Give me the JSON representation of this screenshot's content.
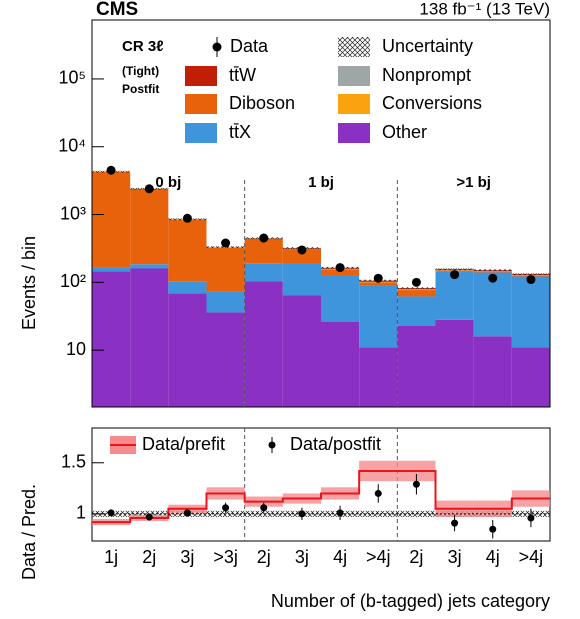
{
  "chart_data": {
    "type": "stacked_hist_ratio",
    "experiment": "CMS",
    "lumi": "138 fb⁻¹ (13 TeV)",
    "region": "CR 3ℓ",
    "selection": "(Tight)",
    "fit": "Postfit",
    "ylabel": "Events / bin",
    "ratio_ylabel": "Data / Pred.",
    "xlabel": "Number of (b-tagged) jets category",
    "log_y": true,
    "categories": [
      "1j",
      "2j",
      "3j",
      ">3j",
      "2j",
      "3j",
      "4j",
      ">4j",
      "2j",
      "3j",
      "4j",
      ">4j"
    ],
    "groups": [
      {
        "label": "0 bj",
        "bins": [
          0,
          4
        ]
      },
      {
        "label": "1 bj",
        "bins": [
          4,
          8
        ]
      },
      {
        "label": ">1 bj",
        "bins": [
          8,
          12
        ]
      }
    ],
    "ylim": [
      1.45,
      740000
    ],
    "yticks": [
      {
        "value": 10,
        "label": "10"
      },
      {
        "value": 100,
        "label": "10²"
      },
      {
        "value": 1000,
        "label": "10³"
      },
      {
        "value": 10000,
        "label": "10⁴"
      },
      {
        "value": 100000,
        "label": "10⁵"
      }
    ],
    "series": [
      {
        "name": "Other",
        "color": "#8a30c2",
        "values": [
          145,
          160,
          69,
          36,
          103,
          64,
          26,
          11,
          23,
          28,
          16,
          11
        ]
      },
      {
        "name": "tt̄X",
        "color": "#3e95dc",
        "values": [
          20,
          25,
          35,
          37,
          85,
          126,
          100,
          79,
          39,
          117,
          124,
          111
        ]
      },
      {
        "name": "Diboson",
        "color": "#e8620c",
        "values": [
          4100,
          2200,
          740,
          250,
          250,
          120,
          30,
          10,
          15,
          5,
          5,
          4
        ]
      },
      {
        "name": "Conversions",
        "color": "#fba30e",
        "values": [
          15,
          10,
          5,
          4,
          3,
          2,
          2,
          1,
          1,
          1,
          1,
          1
        ]
      },
      {
        "name": "Nonprompt",
        "color": "#9ea7a6",
        "values": [
          5,
          4,
          2,
          2,
          2,
          2,
          1,
          1,
          1,
          1,
          1,
          1
        ]
      },
      {
        "name": "tt̄W",
        "color": "#c01f05",
        "values": [
          2,
          2,
          2,
          2,
          4,
          6,
          5,
          4,
          3,
          4,
          4,
          4
        ]
      }
    ],
    "data": {
      "name": "Data",
      "values": [
        4500,
        2400,
        880,
        380,
        450,
        300,
        165,
        115,
        100,
        130,
        115,
        110
      ]
    },
    "uncertainty": {
      "name": "Uncertainty",
      "values": [
        0.03,
        0.03,
        0.03,
        0.03,
        0.03,
        0.03,
        0.03,
        0.03,
        0.03,
        0.03,
        0.03,
        0.03
      ]
    },
    "ratio_ylim": [
      0.735,
      1.84
    ],
    "ratio_yticks": [
      1,
      1.5
    ],
    "prefit": {
      "name": "Data/prefit",
      "color": "#e8161b",
      "band_color": "#f58b8d",
      "values": [
        0.92,
        0.96,
        1.05,
        1.2,
        1.12,
        1.15,
        1.2,
        1.42,
        1.42,
        1.05,
        1.05,
        1.15
      ],
      "errors": [
        0.03,
        0.03,
        0.04,
        0.06,
        0.05,
        0.05,
        0.06,
        0.1,
        0.1,
        0.08,
        0.08,
        0.08
      ]
    },
    "postfit": {
      "name": "Data/postfit",
      "values": [
        1.01,
        0.97,
        1.01,
        1.06,
        1.06,
        1.0,
        1.01,
        1.2,
        1.29,
        0.91,
        0.85,
        0.96
      ],
      "errors": [
        0.02,
        0.02,
        0.03,
        0.05,
        0.05,
        0.06,
        0.07,
        0.09,
        0.1,
        0.08,
        0.09,
        0.09
      ]
    }
  }
}
